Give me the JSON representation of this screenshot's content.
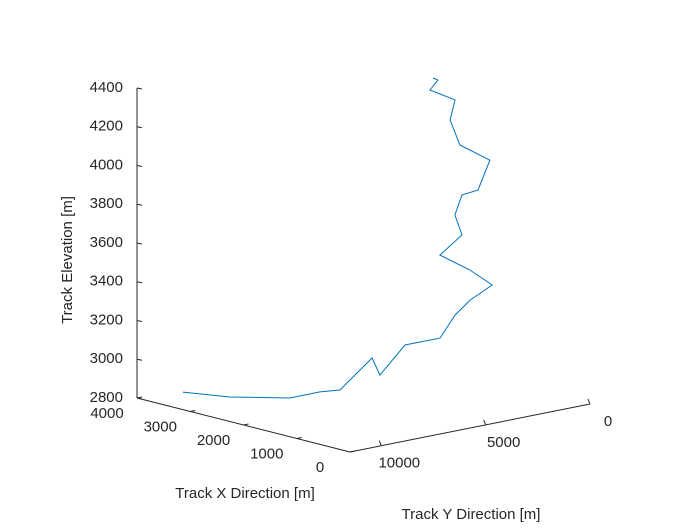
{
  "chart_data": {
    "type": "line3d",
    "xlabel": "Track X Direction [m]",
    "ylabel": "Track Y Direction [m]",
    "zlabel": "Track Elevation [m]",
    "xlim": [
      0,
      4000
    ],
    "xticks": [
      0,
      1000,
      2000,
      3000,
      4000
    ],
    "ylim": [
      0,
      11500
    ],
    "yticks": [
      0,
      5000,
      10000
    ],
    "zlim": [
      2800,
      4400
    ],
    "zticks": [
      2800,
      3000,
      3200,
      3400,
      3600,
      3800,
      4000,
      4200,
      4400
    ],
    "track": {
      "color": "#0072bd",
      "x": [
        3400,
        3000,
        2500,
        2200,
        2000,
        1800,
        1700,
        1600,
        1500,
        1500,
        1500,
        1500,
        1600,
        1800,
        1800,
        2000,
        2000,
        1900,
        1700,
        2000,
        2200,
        2300,
        2500,
        2500,
        2500
      ],
      "y": [
        10830,
        9600,
        8000,
        7330,
        6880,
        5850,
        5730,
        4780,
        3360,
        2640,
        1920,
        860,
        1670,
        2600,
        1540,
        1370,
        1030,
        520,
        460,
        1130,
        1090,
        600,
        1290,
        910,
        1150
      ],
      "z": [
        2858,
        2834,
        2829,
        2867,
        2881,
        3038,
        2954,
        3096,
        3108,
        3211,
        3273,
        3328,
        3416,
        3499,
        3580,
        3666,
        3762,
        3783,
        3950,
        4022,
        4136,
        4222,
        4274,
        4317,
        4333
      ]
    }
  }
}
